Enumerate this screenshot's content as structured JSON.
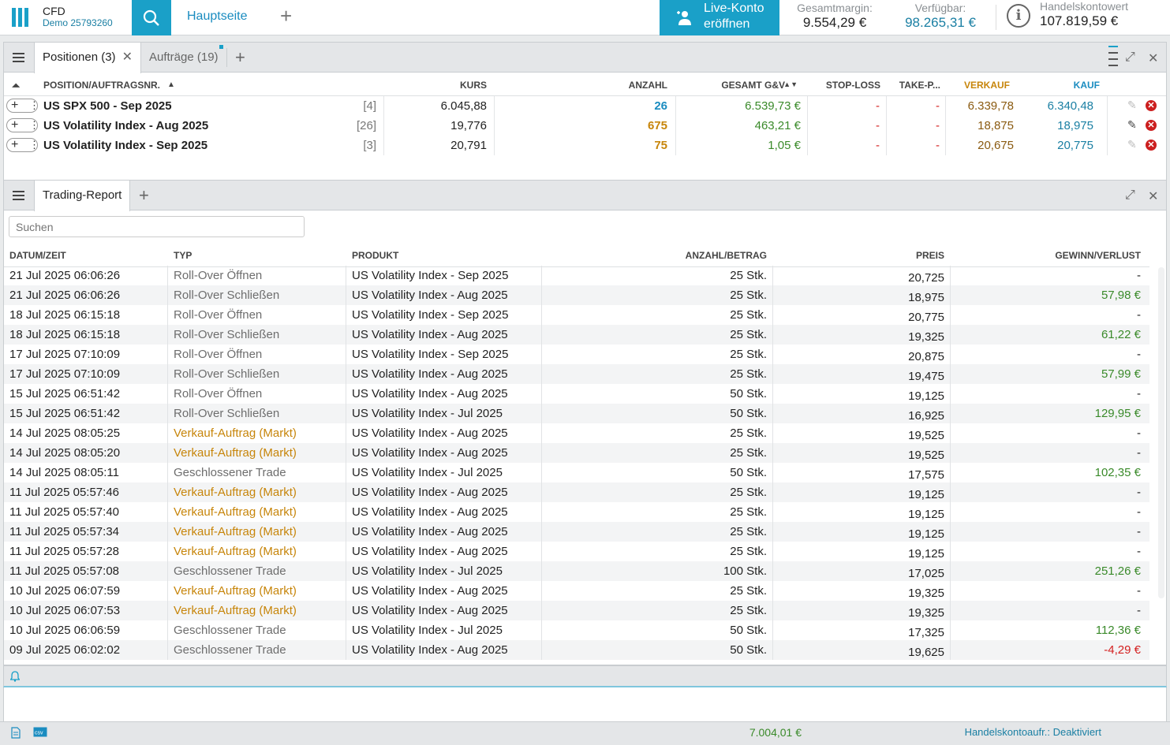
{
  "header": {
    "account_type": "CFD",
    "account_number": "Demo 25793260",
    "home_tab": "Hauptseite",
    "live_button": [
      "Live-Konto",
      "eröffnen"
    ],
    "stats": [
      {
        "label": "Gesamtmargin:",
        "value": "9.554,29 €"
      },
      {
        "label": "Verfügbar:",
        "value": "98.265,31 €"
      },
      {
        "label": "Handelskontowert",
        "value": "107.819,59 €"
      }
    ]
  },
  "positions_panel": {
    "tabs": [
      {
        "label": "Positionen (3)"
      },
      {
        "label": "Aufträge (19)"
      }
    ],
    "columns": {
      "position": "POSITION/AUFTRAGSNR.",
      "kurs": "KURS",
      "anzahl": "ANZAHL",
      "gv": "GESAMT G&V",
      "sl": "STOP-LOSS",
      "tp": "TAKE-P...",
      "sell": "VERKAUF",
      "buy": "KAUF"
    },
    "rows": [
      {
        "name": "US SPX 500 - Sep 2025",
        "count": "[4]",
        "kurs": "6.045,88",
        "anzahl": "26",
        "side": "buy",
        "gv": "6.539,73 €",
        "sl": "-",
        "tp": "-",
        "sell": "6.339,78",
        "buy": "6.340,48"
      },
      {
        "name": "US Volatility Index - Aug 2025",
        "count": "[26]",
        "kurs": "19,776",
        "anzahl": "675",
        "side": "sell",
        "gv": "463,21 €",
        "sl": "-",
        "tp": "-",
        "sell": "18,875",
        "buy": "18,975"
      },
      {
        "name": "US Volatility Index - Sep 2025",
        "count": "[3]",
        "kurs": "20,791",
        "anzahl": "75",
        "side": "sell",
        "gv": "1,05 €",
        "sl": "-",
        "tp": "-",
        "sell": "20,675",
        "buy": "20,775"
      }
    ]
  },
  "report_panel": {
    "tab": "Trading-Report",
    "search_placeholder": "Suchen",
    "columns": {
      "date": "DATUM/ZEIT",
      "typ": "TYP",
      "produkt": "PRODUKT",
      "anzahl": "ANZAHL/BETRAG",
      "preis": "PREIS",
      "gv": "GEWINN/VERLUST"
    },
    "rows": [
      {
        "date": "21 Jul 2025 06:06:26",
        "typ": "Roll-Over Öffnen",
        "kind": "plain",
        "produkt": "US Volatility Index - Sep 2025",
        "anzahl": "25 Stk.",
        "preis": "20,725",
        "gv": "-",
        "gvclass": ""
      },
      {
        "date": "21 Jul 2025 06:06:26",
        "typ": "Roll-Over Schließen",
        "kind": "plain",
        "produkt": "US Volatility Index - Aug 2025",
        "anzahl": "25 Stk.",
        "preis": "18,975",
        "gv": "57,98 €",
        "gvclass": "pos"
      },
      {
        "date": "18 Jul 2025 06:15:18",
        "typ": "Roll-Over Öffnen",
        "kind": "plain",
        "produkt": "US Volatility Index - Sep 2025",
        "anzahl": "25 Stk.",
        "preis": "20,775",
        "gv": "-",
        "gvclass": ""
      },
      {
        "date": "18 Jul 2025 06:15:18",
        "typ": "Roll-Over Schließen",
        "kind": "plain",
        "produkt": "US Volatility Index - Aug 2025",
        "anzahl": "25 Stk.",
        "preis": "19,325",
        "gv": "61,22 €",
        "gvclass": "pos"
      },
      {
        "date": "17 Jul 2025 07:10:09",
        "typ": "Roll-Over Öffnen",
        "kind": "plain",
        "produkt": "US Volatility Index - Sep 2025",
        "anzahl": "25 Stk.",
        "preis": "20,875",
        "gv": "-",
        "gvclass": ""
      },
      {
        "date": "17 Jul 2025 07:10:09",
        "typ": "Roll-Over Schließen",
        "kind": "plain",
        "produkt": "US Volatility Index - Aug 2025",
        "anzahl": "25 Stk.",
        "preis": "19,475",
        "gv": "57,99 €",
        "gvclass": "pos"
      },
      {
        "date": "15 Jul 2025 06:51:42",
        "typ": "Roll-Over Öffnen",
        "kind": "plain",
        "produkt": "US Volatility Index - Aug 2025",
        "anzahl": "50 Stk.",
        "preis": "19,125",
        "gv": "-",
        "gvclass": ""
      },
      {
        "date": "15 Jul 2025 06:51:42",
        "typ": "Roll-Over Schließen",
        "kind": "plain",
        "produkt": "US Volatility Index - Jul 2025",
        "anzahl": "50 Stk.",
        "preis": "16,925",
        "gv": "129,95 €",
        "gvclass": "pos"
      },
      {
        "date": "14 Jul 2025 08:05:25",
        "typ": "Verkauf-Auftrag (Markt)",
        "kind": "order",
        "produkt": "US Volatility Index - Aug 2025",
        "anzahl": "25 Stk.",
        "preis": "19,525",
        "gv": "-",
        "gvclass": ""
      },
      {
        "date": "14 Jul 2025 08:05:20",
        "typ": "Verkauf-Auftrag (Markt)",
        "kind": "order",
        "produkt": "US Volatility Index - Aug 2025",
        "anzahl": "25 Stk.",
        "preis": "19,525",
        "gv": "-",
        "gvclass": ""
      },
      {
        "date": "14 Jul 2025 08:05:11",
        "typ": "Geschlossener Trade",
        "kind": "plain",
        "produkt": "US Volatility Index - Jul 2025",
        "anzahl": "50 Stk.",
        "preis": "17,575",
        "gv": "102,35 €",
        "gvclass": "pos"
      },
      {
        "date": "11 Jul 2025 05:57:46",
        "typ": "Verkauf-Auftrag (Markt)",
        "kind": "order",
        "produkt": "US Volatility Index - Aug 2025",
        "anzahl": "25 Stk.",
        "preis": "19,125",
        "gv": "-",
        "gvclass": ""
      },
      {
        "date": "11 Jul 2025 05:57:40",
        "typ": "Verkauf-Auftrag (Markt)",
        "kind": "order",
        "produkt": "US Volatility Index - Aug 2025",
        "anzahl": "25 Stk.",
        "preis": "19,125",
        "gv": "-",
        "gvclass": ""
      },
      {
        "date": "11 Jul 2025 05:57:34",
        "typ": "Verkauf-Auftrag (Markt)",
        "kind": "order",
        "produkt": "US Volatility Index - Aug 2025",
        "anzahl": "25 Stk.",
        "preis": "19,125",
        "gv": "-",
        "gvclass": ""
      },
      {
        "date": "11 Jul 2025 05:57:28",
        "typ": "Verkauf-Auftrag (Markt)",
        "kind": "order",
        "produkt": "US Volatility Index - Aug 2025",
        "anzahl": "25 Stk.",
        "preis": "19,125",
        "gv": "-",
        "gvclass": ""
      },
      {
        "date": "11 Jul 2025 05:57:08",
        "typ": "Geschlossener Trade",
        "kind": "plain",
        "produkt": "US Volatility Index - Jul 2025",
        "anzahl": "100 Stk.",
        "preis": "17,025",
        "gv": "251,26 €",
        "gvclass": "pos"
      },
      {
        "date": "10 Jul 2025 06:07:59",
        "typ": "Verkauf-Auftrag (Markt)",
        "kind": "order",
        "produkt": "US Volatility Index - Aug 2025",
        "anzahl": "25 Stk.",
        "preis": "19,325",
        "gv": "-",
        "gvclass": ""
      },
      {
        "date": "10 Jul 2025 06:07:53",
        "typ": "Verkauf-Auftrag (Markt)",
        "kind": "order",
        "produkt": "US Volatility Index - Aug 2025",
        "anzahl": "25 Stk.",
        "preis": "19,325",
        "gv": "-",
        "gvclass": ""
      },
      {
        "date": "10 Jul 2025 06:06:59",
        "typ": "Geschlossener Trade",
        "kind": "plain",
        "produkt": "US Volatility Index - Jul 2025",
        "anzahl": "50 Stk.",
        "preis": "17,325",
        "gv": "112,36 €",
        "gvclass": "pos"
      },
      {
        "date": "09 Jul 2025 06:02:02",
        "typ": "Geschlossener Trade",
        "kind": "plain",
        "produkt": "US Volatility Index - Aug 2025",
        "anzahl": "50 Stk.",
        "preis": "19,625",
        "gv": "-4,29 €",
        "gvclass": "neg"
      }
    ]
  },
  "statusbar": {
    "total": "7.004,01 €",
    "handel_label": "Handelskontoaufr.: Deaktiviert"
  },
  "colors": {
    "accent": "#1aa0c8",
    "positive": "#3a8a2a",
    "negative": "#d42020",
    "sell": "#c7850a",
    "buy": "#1a8cc0"
  }
}
